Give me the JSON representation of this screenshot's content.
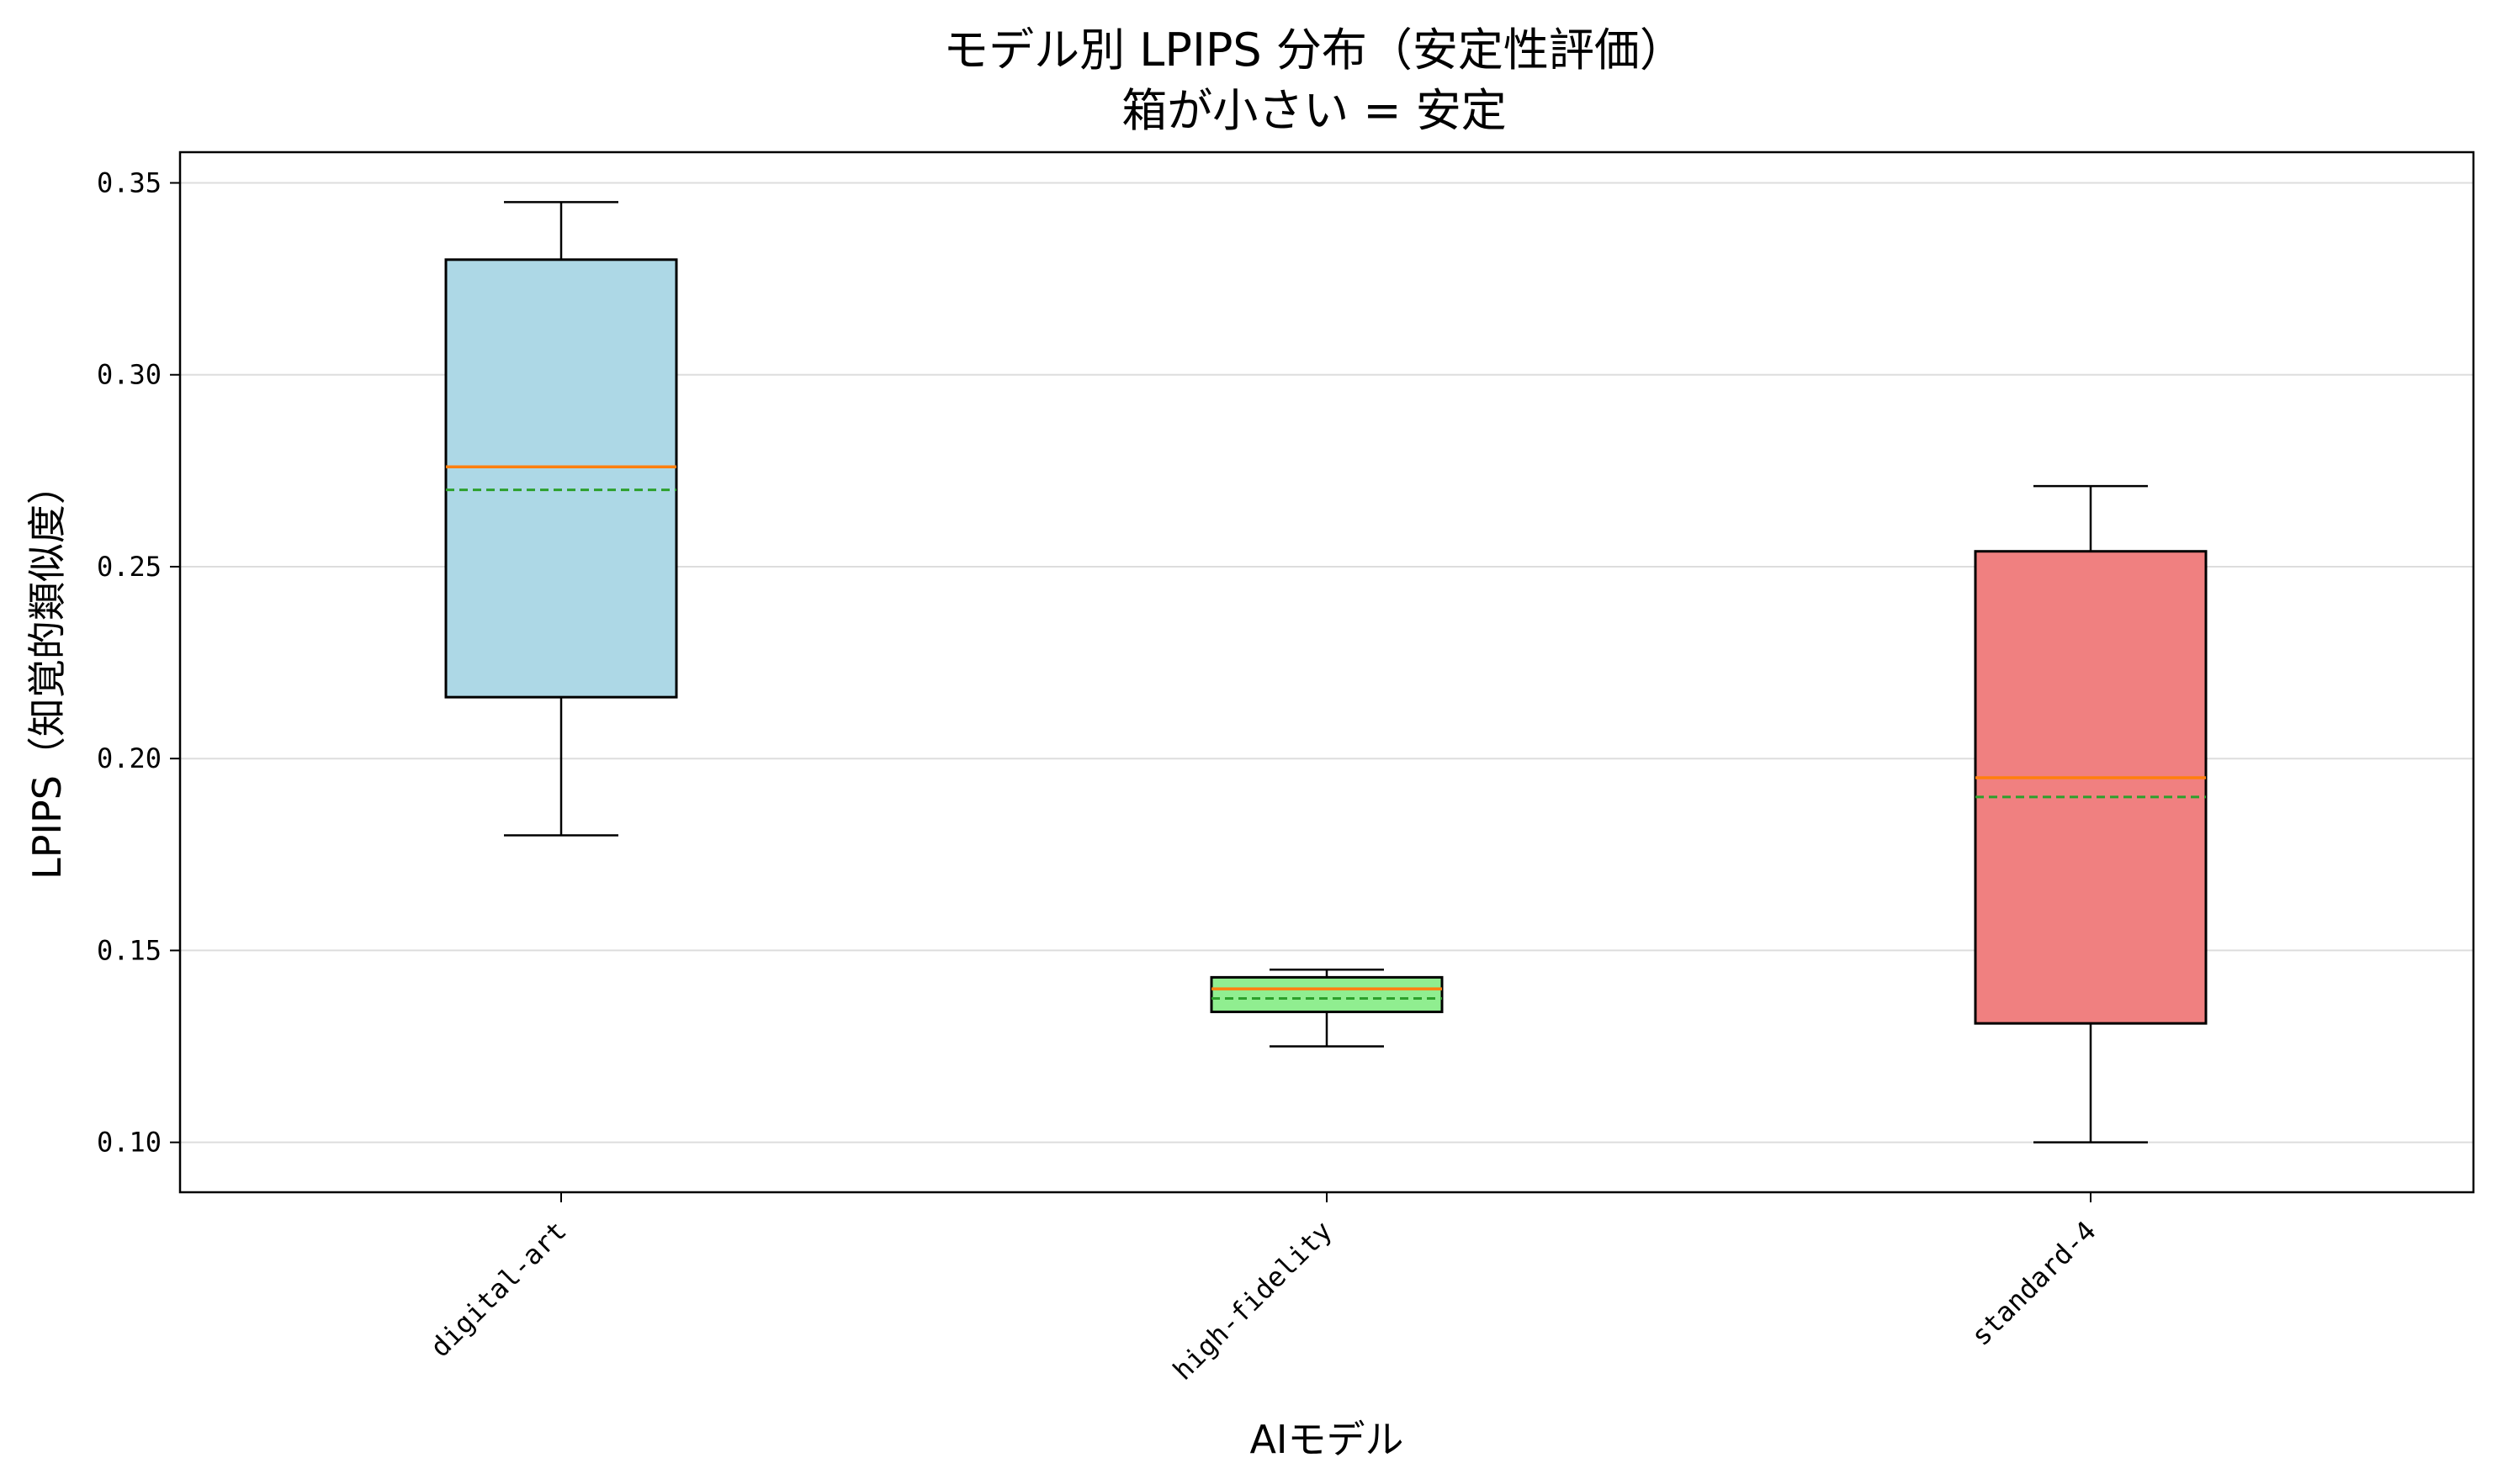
{
  "chart_data": {
    "type": "boxplot",
    "title": "モデル別 LPIPS 分布（安定性評価）",
    "subtitle": "箱が小さい = 安定",
    "xlabel": "AIモデル",
    "ylabel": "LPIPS（知覚的類似度）",
    "ylim": [
      0.087,
      0.358
    ],
    "yticks": [
      "0.10",
      "0.15",
      "0.20",
      "0.25",
      "0.30",
      "0.35"
    ],
    "grid": true,
    "categories": [
      "digital-art",
      "high-fidelity",
      "standard-4"
    ],
    "series": [
      {
        "category": "digital-art",
        "min": 0.18,
        "q1": 0.216,
        "median": 0.276,
        "mean": 0.27,
        "q3": 0.33,
        "max": 0.345,
        "color": "#add8e6"
      },
      {
        "category": "high-fidelity",
        "min": 0.125,
        "q1": 0.134,
        "median": 0.14,
        "mean": 0.1375,
        "q3": 0.143,
        "max": 0.145,
        "color": "#90ee90"
      },
      {
        "category": "standard-4",
        "min": 0.1,
        "q1": 0.131,
        "median": 0.195,
        "mean": 0.19,
        "q3": 0.254,
        "max": 0.271,
        "color": "#f08080"
      }
    ],
    "median_color": "#ff7f0e",
    "mean_color": "#2ca02c"
  }
}
